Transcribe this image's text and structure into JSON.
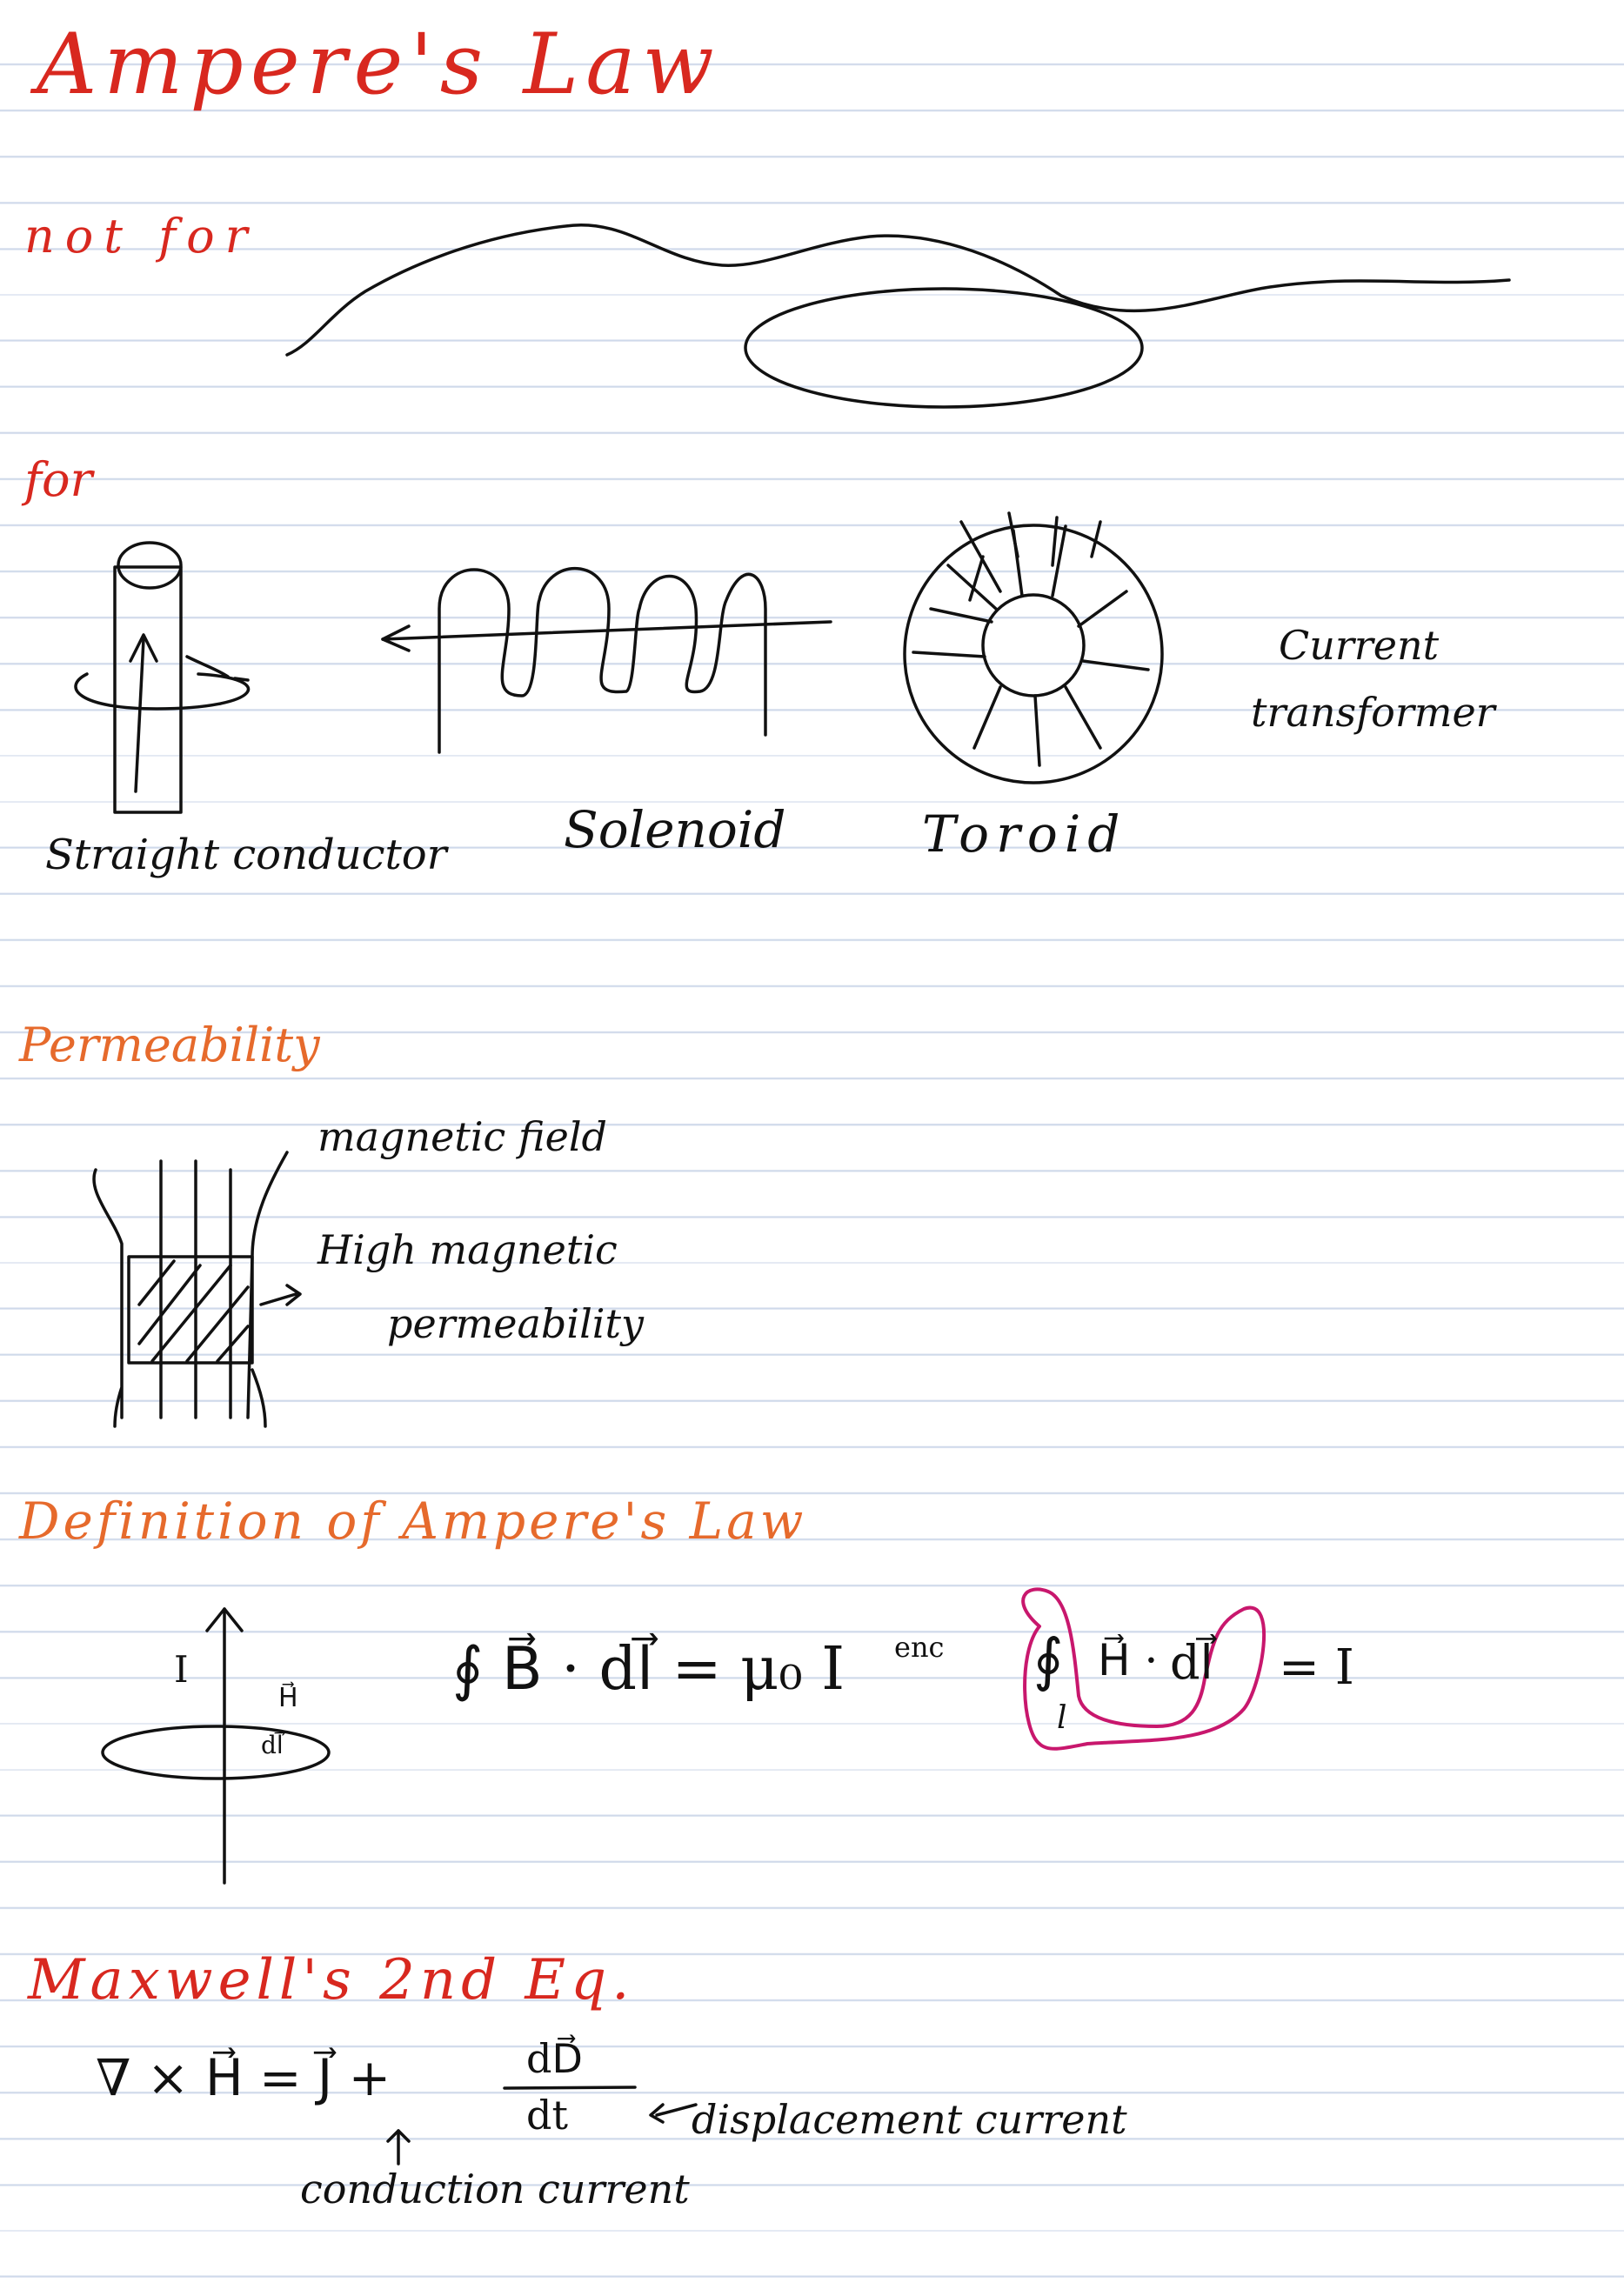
{
  "title": "Ampere's Law",
  "sections": {
    "not_for": "not for",
    "for": "for",
    "permeability": "Permeability",
    "definition": "Definition of Ampere's Law",
    "maxwell": "Maxwell's 2nd Eq."
  },
  "for_items": {
    "straight": "Straight conductor",
    "solenoid": "Solenoid",
    "toroid": "Toroid",
    "ct_line1": "Current",
    "ct_line2": "transformer"
  },
  "permeability_notes": {
    "field": "magnetic field",
    "high_line1": "High magnetic",
    "high_line2": "permeability"
  },
  "definition_eq": {
    "current_label": "I",
    "h_label": "H⃗",
    "dl_label": "dl⃗",
    "eq1": "∮ B⃗ · dl⃗ = μ₀ I",
    "eq1_sup": "enc",
    "eq2_int": "∮",
    "eq2_sub": "l",
    "eq2_h": "H⃗ ·",
    "eq2_dl": "dl⃗",
    "eq2_rhs": "= I"
  },
  "maxwell_eq": {
    "lhs": "∇ × H⃗ = J⃗ +",
    "num": "dD⃗",
    "den": "dt",
    "disp_label": "displacement current",
    "cond_label": "conduction current"
  }
}
